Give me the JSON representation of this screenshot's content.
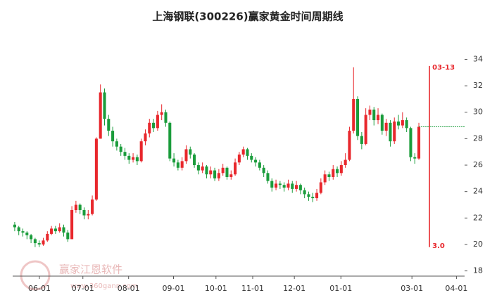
{
  "chart_data": {
    "type": "candlestick",
    "title": "上海钢联(300226)赢家黄金时间周期线",
    "watermark": "赢家江恩软件",
    "watermark_url": "www.360gann.com",
    "up_color": "#e8272c",
    "down_color": "#1a9c3b",
    "open": [
      21.5,
      21.3,
      21.0,
      20.9,
      20.7,
      20.4,
      20.1,
      20.0,
      20.3,
      20.8,
      21.2,
      21.0,
      21.3,
      20.9,
      20.4,
      22.6,
      23.0,
      22.6,
      22.2,
      22.3,
      23.4,
      28.0,
      31.5,
      29.5,
      28.6,
      27.8,
      27.4,
      27.0,
      26.7,
      26.4,
      26.6,
      26.3,
      27.8,
      28.4,
      29.2,
      28.8,
      29.8,
      30.0,
      29.2,
      26.5,
      26.2,
      25.8,
      26.3,
      27.2,
      26.8,
      26.0,
      25.6,
      25.9,
      25.3,
      25.6,
      25.0,
      25.4,
      25.8,
      25.1,
      25.3,
      26.2,
      26.8,
      27.2,
      26.7,
      26.4,
      26.2,
      25.8,
      25.4,
      24.8,
      24.3,
      24.6,
      24.5,
      24.3,
      24.6,
      24.2,
      24.5,
      24.1,
      23.8,
      23.6,
      23.5,
      23.9,
      24.7,
      25.3,
      25.1,
      25.7,
      25.4,
      26.0,
      26.4,
      28.6,
      31.0,
      28.2,
      27.6,
      29.8,
      30.2,
      29.4,
      29.8,
      28.6,
      29.2,
      27.8,
      29.3,
      29.0,
      29.4,
      28.8,
      26.6,
      26.5
    ],
    "high": [
      21.7,
      21.4,
      21.2,
      21.0,
      20.8,
      20.5,
      20.3,
      20.5,
      21.0,
      21.4,
      21.4,
      21.6,
      21.5,
      21.1,
      22.9,
      23.3,
      23.1,
      22.8,
      22.6,
      23.7,
      28.1,
      32.1,
      31.8,
      29.8,
      28.9,
      28.0,
      27.6,
      27.3,
      26.9,
      26.9,
      26.8,
      28.0,
      28.7,
      29.5,
      29.5,
      30.1,
      30.6,
      30.2,
      29.3,
      26.9,
      26.4,
      26.6,
      27.5,
      27.4,
      26.9,
      26.2,
      26.2,
      26.0,
      25.9,
      25.8,
      25.7,
      26.1,
      25.9,
      25.6,
      26.5,
      27.0,
      27.4,
      27.3,
      26.9,
      26.6,
      26.4,
      26.0,
      25.6,
      25.0,
      24.9,
      24.8,
      24.7,
      24.9,
      24.8,
      24.8,
      24.6,
      24.3,
      24.0,
      23.9,
      24.2,
      25.0,
      25.6,
      25.5,
      26.0,
      25.9,
      26.3,
      26.9,
      28.9,
      33.4,
      31.2,
      28.5,
      30.3,
      30.5,
      30.4,
      30.3,
      29.9,
      29.5,
      29.4,
      29.6,
      29.8,
      30.0,
      29.6,
      28.9,
      26.9,
      29.2
    ],
    "low": [
      21.0,
      20.7,
      20.6,
      20.4,
      20.1,
      19.8,
      19.8,
      19.9,
      20.2,
      20.7,
      20.8,
      20.9,
      20.6,
      20.2,
      20.4,
      22.4,
      22.3,
      21.9,
      21.9,
      22.2,
      23.3,
      28.0,
      29.0,
      28.2,
      27.4,
      27.1,
      26.7,
      26.4,
      26.1,
      26.2,
      26.0,
      26.2,
      27.5,
      28.1,
      28.5,
      28.6,
      29.4,
      28.9,
      26.3,
      25.9,
      25.6,
      25.6,
      26.1,
      26.5,
      25.8,
      25.3,
      25.4,
      25.0,
      25.0,
      24.8,
      24.8,
      25.2,
      24.9,
      24.9,
      25.2,
      26.0,
      26.6,
      26.4,
      26.2,
      25.9,
      25.6,
      25.1,
      24.6,
      24.0,
      24.1,
      24.2,
      24.0,
      24.1,
      23.9,
      24.0,
      23.8,
      23.5,
      23.3,
      23.2,
      23.3,
      23.8,
      24.5,
      24.8,
      24.9,
      25.1,
      25.2,
      25.8,
      26.3,
      28.4,
      27.9,
      27.2,
      27.5,
      29.4,
      29.0,
      29.1,
      28.3,
      28.2,
      27.4,
      27.6,
      28.7,
      28.8,
      28.5,
      26.3,
      26.1,
      26.4
    ],
    "close": [
      21.3,
      21.0,
      20.9,
      20.7,
      20.4,
      20.1,
      20.0,
      20.3,
      20.8,
      21.2,
      21.0,
      21.3,
      20.9,
      20.4,
      22.6,
      23.0,
      22.6,
      22.2,
      22.3,
      23.4,
      28.0,
      31.5,
      29.5,
      28.6,
      27.8,
      27.4,
      27.0,
      26.7,
      26.4,
      26.6,
      26.3,
      27.8,
      28.4,
      29.2,
      28.8,
      29.8,
      30.0,
      29.2,
      26.5,
      26.2,
      25.8,
      26.3,
      27.2,
      26.8,
      26.0,
      25.6,
      25.9,
      25.3,
      25.6,
      25.0,
      25.4,
      25.8,
      25.1,
      25.3,
      26.2,
      26.8,
      27.2,
      26.7,
      26.4,
      26.2,
      25.8,
      25.4,
      24.8,
      24.3,
      24.6,
      24.5,
      24.3,
      24.6,
      24.2,
      24.5,
      24.1,
      23.8,
      23.6,
      23.5,
      23.9,
      24.7,
      25.3,
      25.1,
      25.7,
      25.4,
      26.0,
      26.4,
      28.6,
      31.0,
      28.2,
      27.6,
      29.8,
      30.2,
      29.4,
      29.8,
      28.6,
      29.2,
      27.8,
      29.3,
      29.0,
      29.4,
      28.8,
      26.6,
      26.5,
      28.9
    ],
    "xlim": [
      -0.5,
      110.2
    ],
    "xticks": [
      {
        "value": 6.05,
        "label": "06-01"
      },
      {
        "value": 16.7,
        "label": "07-01"
      },
      {
        "value": 27.9,
        "label": "08-01"
      },
      {
        "value": 38.9,
        "label": "09-01"
      },
      {
        "value": 49.3,
        "label": "10-01"
      },
      {
        "value": 58.3,
        "label": "11-01"
      },
      {
        "value": 68.5,
        "label": "12-01"
      },
      {
        "value": 79.9,
        "label": "01-01"
      },
      {
        "value": 97.3,
        "label": "03-01"
      },
      {
        "value": 108.2,
        "label": "04-01"
      }
    ],
    "ylim": [
      17.5,
      35.3
    ],
    "yticks": [
      18,
      20,
      22,
      24,
      26,
      28,
      30,
      32,
      34
    ],
    "cycle_line": {
      "x": 101.6,
      "label": "03-13",
      "period": "3.0",
      "color": "#e8272c"
    }
  }
}
